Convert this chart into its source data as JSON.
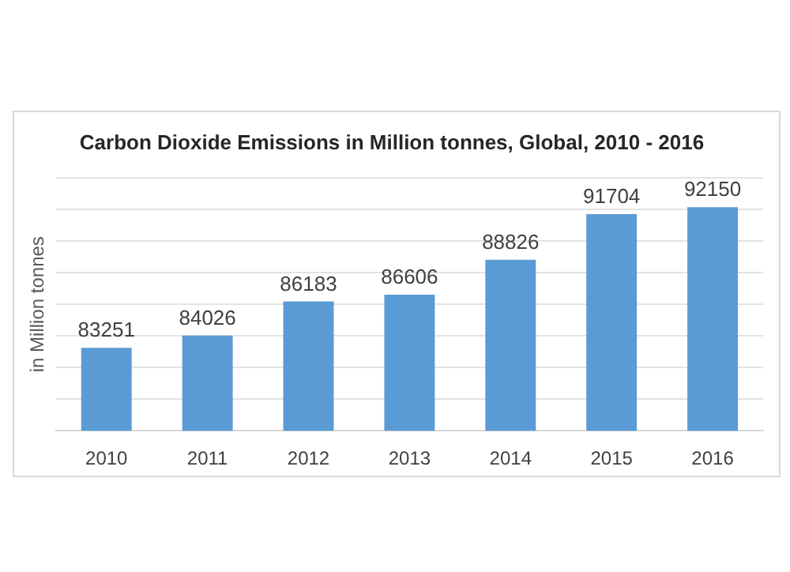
{
  "chart_data": {
    "type": "bar",
    "title": "Carbon Dioxide Emissions in Million tonnes, Global, 2010 - 2016",
    "ylabel": "in Million tonnes",
    "categories": [
      "2010",
      "2011",
      "2012",
      "2013",
      "2014",
      "2015",
      "2016"
    ],
    "values": [
      83251,
      84026,
      86183,
      86606,
      88826,
      91704,
      92150
    ],
    "color": "#5b9bd5",
    "ylim": [
      78000,
      94000
    ],
    "yticks": [
      {
        "value": 78000,
        "label": null
      },
      {
        "value": 80000,
        "label": null
      },
      {
        "value": 82000,
        "label": null
      },
      {
        "value": 84000,
        "label": null
      },
      {
        "value": 86000,
        "label": null
      },
      {
        "value": 88000,
        "label": null
      },
      {
        "value": 90000,
        "label": null
      },
      {
        "value": 92000,
        "label": null
      },
      {
        "value": 94000,
        "label": null
      }
    ],
    "grid": "y",
    "tick_labels": "x",
    "data_labels": true
  }
}
